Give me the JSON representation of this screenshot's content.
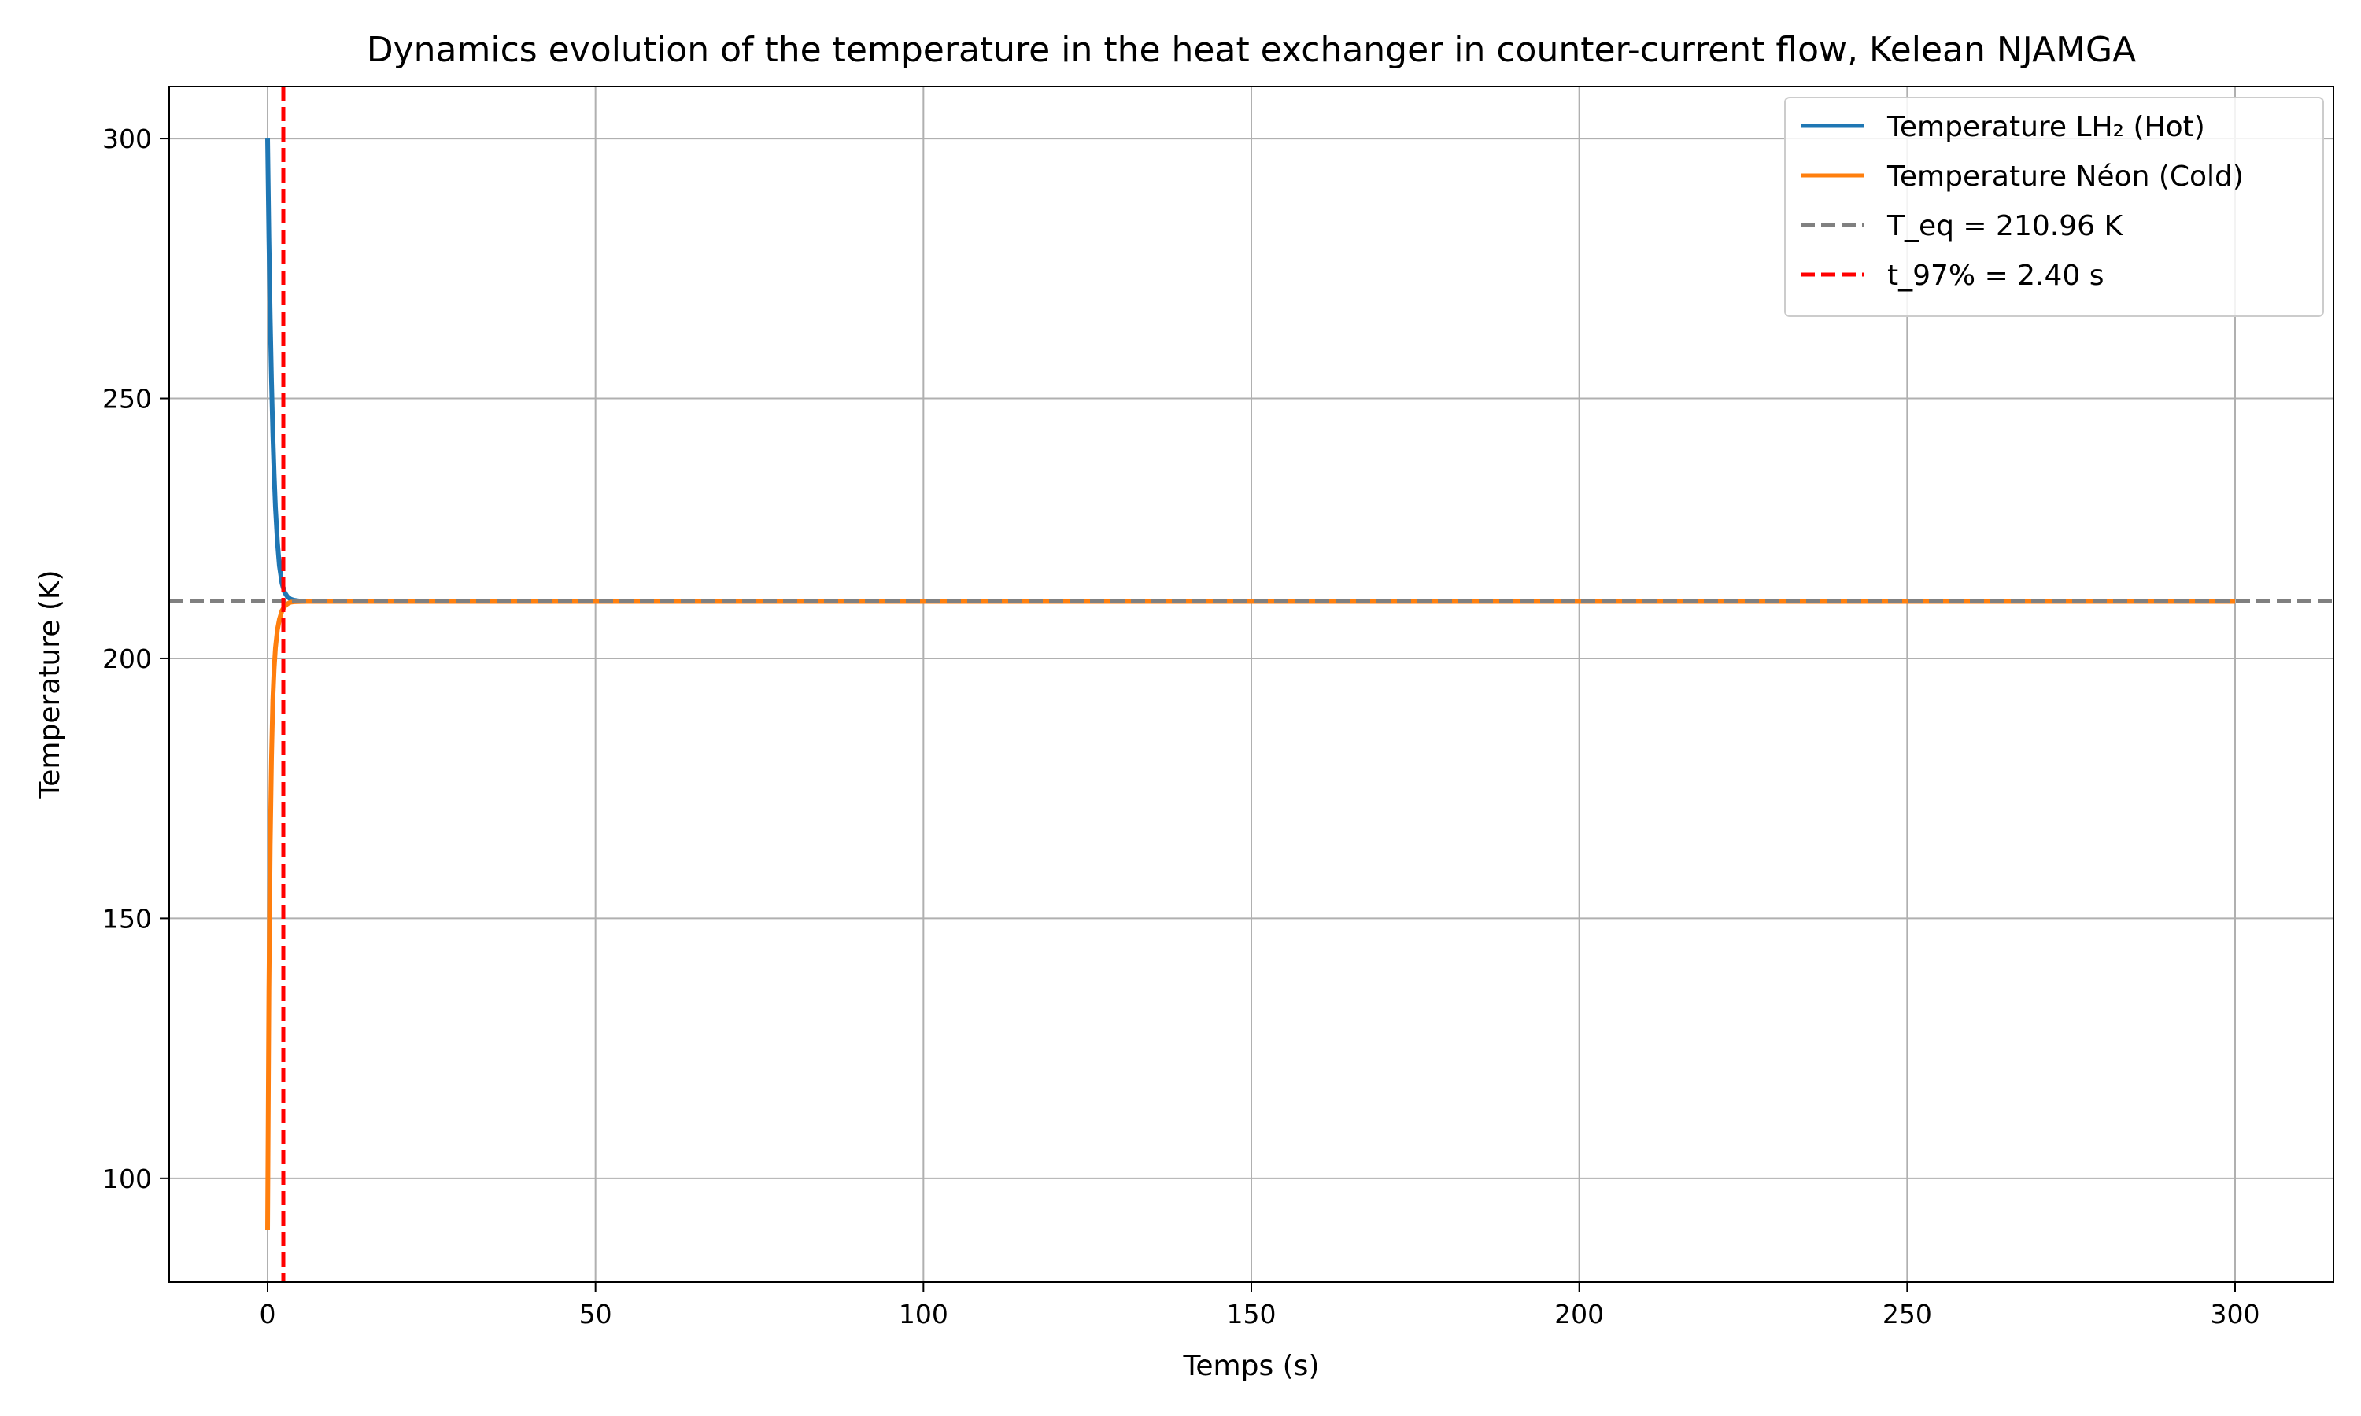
{
  "chart_data": {
    "type": "line",
    "title": "Dynamics evolution of the temperature in the heat exchanger in counter-current flow, Kelean NJAMGA",
    "xlabel": "Temps (s)",
    "ylabel": "Temperature (K)",
    "xlim": [
      -15,
      315
    ],
    "ylim": [
      80,
      310
    ],
    "xticks": [
      0,
      50,
      100,
      150,
      200,
      250,
      300
    ],
    "yticks": [
      100,
      150,
      200,
      250,
      300
    ],
    "xtick_labels": [
      "0",
      "50",
      "100",
      "150",
      "200",
      "250",
      "300"
    ],
    "ytick_labels": [
      "100",
      "150",
      "200",
      "250",
      "300"
    ],
    "grid": true,
    "legend_position": "top-right",
    "series": [
      {
        "name": "Temperature LH₂ (Hot)",
        "color": "#1f77b4",
        "style": "solid",
        "x": [
          0,
          0.2,
          0.4,
          0.6,
          0.8,
          1.0,
          1.2,
          1.5,
          1.8,
          2.2,
          2.6,
          3.0,
          3.5,
          4,
          5,
          6,
          8,
          10,
          50,
          100,
          150,
          200,
          250,
          300
        ],
        "y": [
          300,
          280.9,
          265.6,
          253.2,
          243.3,
          235.4,
          229.0,
          222.4,
          217.8,
          214.4,
          212.7,
          211.9,
          211.4,
          211.2,
          211.0,
          210.97,
          210.96,
          210.96,
          210.96,
          210.96,
          210.96,
          210.96,
          210.96,
          210.96
        ]
      },
      {
        "name": "Temperature Néon (Cold)",
        "color": "#ff7f0e",
        "style": "solid",
        "x": [
          0,
          0.2,
          0.4,
          0.6,
          0.8,
          1.0,
          1.2,
          1.5,
          1.8,
          2.2,
          2.6,
          3.0,
          3.5,
          4,
          5,
          6,
          8,
          10,
          50,
          100,
          150,
          200,
          250,
          300
        ],
        "y": [
          90,
          136,
          164,
          181,
          192,
          198,
          202,
          205.5,
          207.5,
          209.2,
          210.0,
          210.5,
          210.8,
          210.9,
          210.95,
          210.96,
          210.96,
          210.96,
          210.96,
          210.96,
          210.96,
          210.96,
          210.96,
          210.96
        ]
      }
    ],
    "reference_lines": [
      {
        "name": "T_eq = 210.96 K",
        "orientation": "horizontal",
        "value": 210.96,
        "color": "#808080",
        "style": "dashed"
      },
      {
        "name": "t_97% = 2.40 s",
        "orientation": "vertical",
        "value": 2.4,
        "color": "#ff0000",
        "style": "dashed"
      }
    ]
  }
}
